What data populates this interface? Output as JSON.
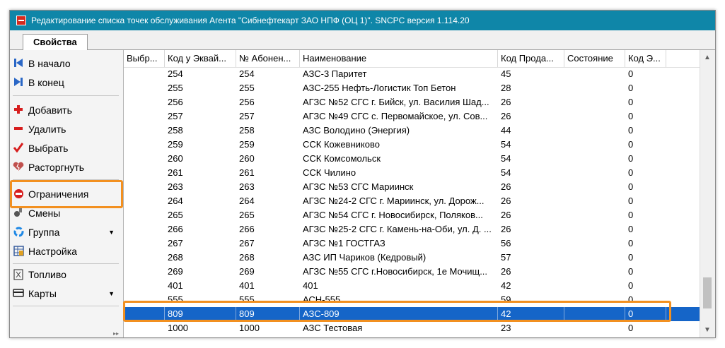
{
  "window": {
    "title": "Редактирование списка точек обслуживания Агента \"Сибнефтекарт ЗАО НПФ (ОЦ 1)\".  SNCPC версия 1.114.20"
  },
  "tabs": [
    {
      "label": "Свойства"
    }
  ],
  "sidebar": {
    "items": [
      {
        "label": "В начало",
        "icon": "skip-first-icon"
      },
      {
        "label": "В конец",
        "icon": "skip-last-icon"
      },
      {
        "label": "Добавить",
        "icon": "plus-icon"
      },
      {
        "label": "Удалить",
        "icon": "minus-icon"
      },
      {
        "label": "Выбрать",
        "icon": "checkmark-icon"
      },
      {
        "label": "Расторгнуть",
        "icon": "broken-heart-icon"
      },
      {
        "label": "Ограничения",
        "icon": "no-entry-icon"
      },
      {
        "label": "Смены",
        "icon": "shift-icon"
      },
      {
        "label": "Группа",
        "icon": "recycle-icon"
      },
      {
        "label": "Настройка",
        "icon": "settings-grid-icon"
      },
      {
        "label": "Топливо",
        "icon": "fuel-icon"
      },
      {
        "label": "Карты",
        "icon": "card-icon"
      }
    ]
  },
  "grid": {
    "columns": [
      "Выбр...",
      "Код у Эквай...",
      "№ Абонен...",
      "Наименование",
      "Код Прода...",
      "Состояние",
      "Код Э..."
    ],
    "rows": [
      [
        "",
        "254",
        "254",
        "АЗС-3 Паритет",
        "45",
        "",
        "0"
      ],
      [
        "",
        "255",
        "255",
        "АЗС-255 Нефть-Логистик Топ Бетон",
        "28",
        "",
        "0"
      ],
      [
        "",
        "256",
        "256",
        "АГЗС №52 СГС г. Бийск, ул. Василия Шад...",
        "26",
        "",
        "0"
      ],
      [
        "",
        "257",
        "257",
        "АГЗС №49 СГС с. Первомайское, ул. Сов...",
        "26",
        "",
        "0"
      ],
      [
        "",
        "258",
        "258",
        "АЗС Володино (Энергия)",
        "44",
        "",
        "0"
      ],
      [
        "",
        "259",
        "259",
        "ССК Кожевниково",
        "54",
        "",
        "0"
      ],
      [
        "",
        "260",
        "260",
        "ССК Комсомольск",
        "54",
        "",
        "0"
      ],
      [
        "",
        "261",
        "261",
        "ССК Чилино",
        "54",
        "",
        "0"
      ],
      [
        "",
        "263",
        "263",
        "АГЗС №53 СГС Мариинск",
        "26",
        "",
        "0"
      ],
      [
        "",
        "264",
        "264",
        "АГЗС №24-2 СГС г. Мариинск, ул. Дорож...",
        "26",
        "",
        "0"
      ],
      [
        "",
        "265",
        "265",
        "АГЗС №54 СГС г. Новосибирск, Поляков...",
        "26",
        "",
        "0"
      ],
      [
        "",
        "266",
        "266",
        "АГЗС №25-2 СГС г. Камень-на-Оби, ул. Д. ...",
        "26",
        "",
        "0"
      ],
      [
        "",
        "267",
        "267",
        "АГЗС №1 ГОСТГАЗ",
        "56",
        "",
        "0"
      ],
      [
        "",
        "268",
        "268",
        "АЗС ИП Чариков (Кедровый)",
        "57",
        "",
        "0"
      ],
      [
        "",
        "269",
        "269",
        "АГЗС №55 СГС г.Новосибирск, 1е Мочищ...",
        "26",
        "",
        "0"
      ],
      [
        "",
        "401",
        "401",
        "401",
        "42",
        "",
        "0"
      ],
      [
        "",
        "555",
        "555",
        "АСН-555",
        "59",
        "",
        "0"
      ],
      [
        "",
        "809",
        "809",
        "АЗС-809",
        "42",
        "",
        "0"
      ],
      [
        "",
        "1000",
        "1000",
        "АЗС Тестовая",
        "23",
        "",
        "0"
      ]
    ],
    "selected_row": 17
  },
  "colors": {
    "titlebar": "#0f86a8",
    "selection": "#1565c8",
    "highlight": "#f29020"
  }
}
